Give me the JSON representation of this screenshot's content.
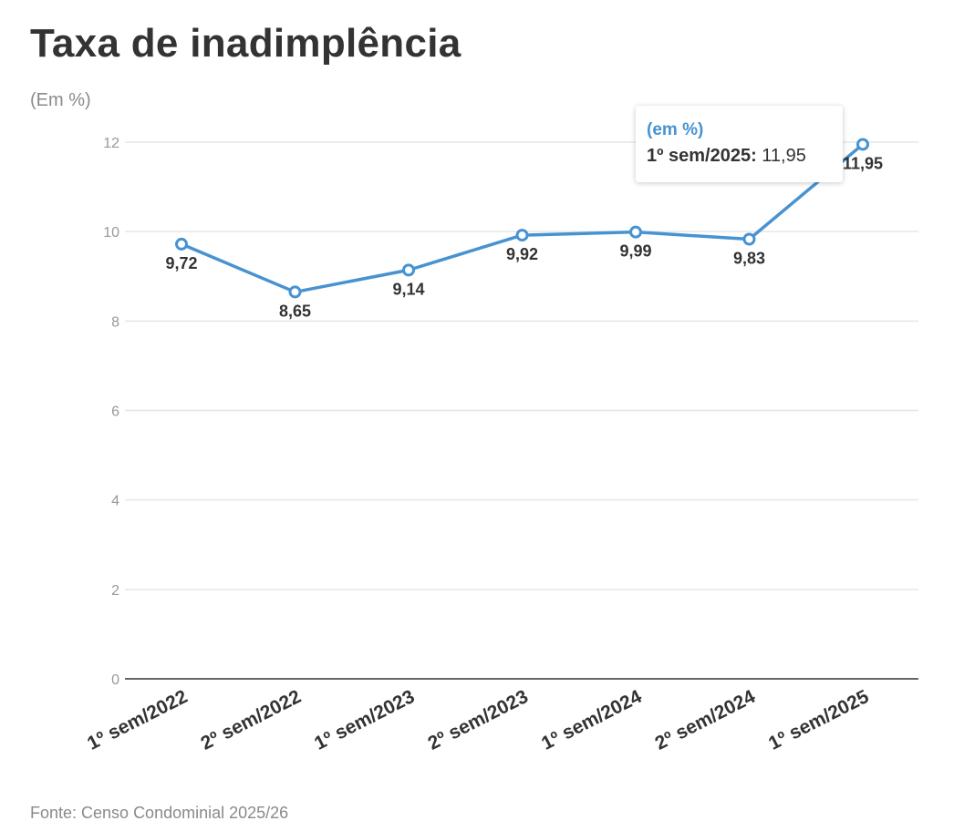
{
  "title": "Taxa de inadimplência",
  "subtitle": "(Em %)",
  "source": "Fonte: Censo Condominial 2025/26",
  "colors": {
    "line": "#4793d1",
    "text": "#333333",
    "muted": "#8a8a8a",
    "grid": "#e6e6e6",
    "axis": "#333333"
  },
  "tooltip": {
    "header": "(em %)",
    "label": "1º sem/2025:",
    "value": "11,95"
  },
  "chart_data": {
    "type": "line",
    "title": "Taxa de inadimplência",
    "ylabel": "(Em %)",
    "xlabel": "",
    "ylim": [
      0,
      12
    ],
    "yticks": [
      0,
      2,
      4,
      6,
      8,
      10,
      12
    ],
    "grid": true,
    "categories": [
      "1º sem/2022",
      "2º sem/2022",
      "1º sem/2023",
      "2º sem/2023",
      "1º sem/2024",
      "2º sem/2024",
      "1º sem/2025"
    ],
    "series": [
      {
        "name": "Taxa de inadimplência",
        "values": [
          9.72,
          8.65,
          9.14,
          9.92,
          9.99,
          9.83,
          11.95
        ],
        "labels": [
          "9,72",
          "8,65",
          "9,14",
          "9,92",
          "9,99",
          "9,83",
          "11,95"
        ]
      }
    ]
  }
}
